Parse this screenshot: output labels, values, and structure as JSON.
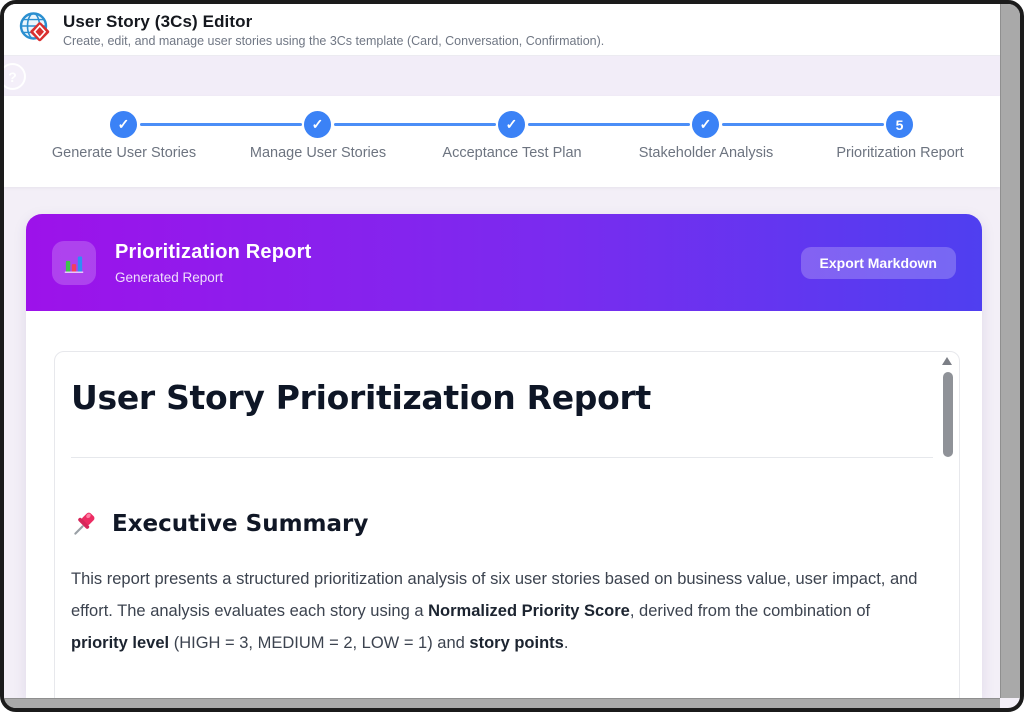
{
  "header": {
    "title": "User Story (3Cs) Editor",
    "subtitle": "Create, edit, and manage user stories using the 3Cs template (Card, Conversation, Confirmation).",
    "logo_icon": "globe-diamond-logo"
  },
  "help": {
    "label": "?"
  },
  "stepper": {
    "steps": [
      {
        "label": "Generate User Stories",
        "marker": "✓",
        "state": "complete"
      },
      {
        "label": "Manage User Stories",
        "marker": "✓",
        "state": "complete"
      },
      {
        "label": "Acceptance Test Plan",
        "marker": "✓",
        "state": "complete"
      },
      {
        "label": "Stakeholder Analysis",
        "marker": "✓",
        "state": "complete"
      },
      {
        "label": "Prioritization Report",
        "marker": "5",
        "state": "active"
      }
    ]
  },
  "panel": {
    "title": "Prioritization Report",
    "subtitle": "Generated Report",
    "icon": "bar-chart-icon",
    "export_button": "Export Markdown"
  },
  "report": {
    "title": "User Story Prioritization Report",
    "section": {
      "icon": "pushpin-icon",
      "heading": "Executive Summary",
      "paragraph_segments": [
        {
          "text": "This report presents a structured prioritization analysis of six user stories based on business value, user impact, and effort. The analysis evaluates each story using a ",
          "bold": false
        },
        {
          "text": "Normalized Priority Score",
          "bold": true
        },
        {
          "text": ", derived from the combination of ",
          "bold": false
        },
        {
          "text": "priority level",
          "bold": true
        },
        {
          "text": " (HIGH = 3, MEDIUM = 2, LOW = 1) and ",
          "bold": false
        },
        {
          "text": "story points",
          "bold": true
        },
        {
          "text": ".",
          "bold": false
        }
      ]
    }
  },
  "colors": {
    "accent_blue": "#3b82f6",
    "gradient_left": "#9d12ea",
    "gradient_right": "#4f3ff0",
    "scrollbar_grey": "#a9a9a9",
    "page_background": "#f3eff7"
  }
}
